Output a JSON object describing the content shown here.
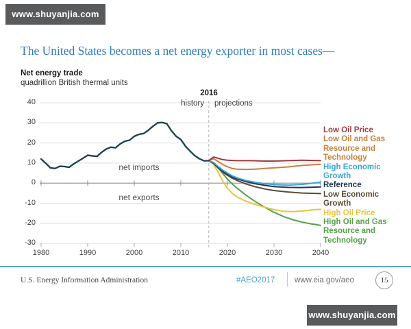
{
  "watermark": {
    "text": "www.shuyanjia.com"
  },
  "title": "The United States becomes a net energy exporter in most cases—",
  "chart": {
    "heading": "Net energy trade",
    "units": "quadrillion British thermal units",
    "divider_label": "2016",
    "history_label": "history",
    "projections_label": "projections",
    "net_imports_label": "net imports",
    "net_exports_label": "net exports"
  },
  "colors": {
    "title_blue": "#2e7bbd",
    "footer_rule_blue": "#57a7d3",
    "hashtag_blue": "#49a0d5",
    "banner_gray": "#595a5c"
  },
  "chart_data": {
    "type": "line",
    "title": "Net energy trade",
    "ylabel": "quadrillion British thermal units",
    "xlim": [
      1980,
      2040
    ],
    "ylim": [
      -30,
      40
    ],
    "x_ticks": [
      1980,
      1990,
      2000,
      2010,
      2020,
      2030,
      2040
    ],
    "y_ticks": [
      40,
      30,
      20,
      10,
      0,
      -10,
      -20,
      -30
    ],
    "divider_year": 2016,
    "grid": true,
    "legend_position": "right",
    "legend": [
      {
        "lines": [
          "Low Oil Price"
        ],
        "color": "#9e3b40"
      },
      {
        "lines": [
          "Low Oil and Gas",
          "Resource and",
          "Technology"
        ],
        "color": "#c5813f"
      },
      {
        "lines": [
          "High Economic",
          "Growth"
        ],
        "color": "#3aa4d9"
      },
      {
        "lines": [
          "Reference"
        ],
        "color": "#1f3550"
      },
      {
        "lines": [
          "Low Economic",
          "Growth"
        ],
        "color": "#5d4a33"
      },
      {
        "lines": [
          "High Oil Price"
        ],
        "color": "#e5c43d"
      },
      {
        "lines": [
          "High Oil and Gas",
          "Resource and",
          "Technology"
        ],
        "color": "#55a049"
      }
    ],
    "series": [
      {
        "name": "High Oil and Gas Resource and Technology",
        "color": "#55a049",
        "width": 2,
        "points": [
          [
            2016,
            11.2
          ],
          [
            2017,
            10.2
          ],
          [
            2018,
            7.8
          ],
          [
            2019,
            4.8
          ],
          [
            2020,
            2
          ],
          [
            2021,
            -0.3
          ],
          [
            2022,
            -2.4
          ],
          [
            2024,
            -6
          ],
          [
            2026,
            -9.2
          ],
          [
            2028,
            -12
          ],
          [
            2030,
            -14.5
          ],
          [
            2032,
            -16.6
          ],
          [
            2034,
            -18.2
          ],
          [
            2036,
            -19.4
          ],
          [
            2038,
            -20.3
          ],
          [
            2040,
            -21
          ]
        ]
      },
      {
        "name": "High Oil Price",
        "color": "#e5c43d",
        "width": 2,
        "points": [
          [
            2016,
            11.2
          ],
          [
            2017,
            9.4
          ],
          [
            2018,
            5.5
          ],
          [
            2019,
            1
          ],
          [
            2020,
            -2.5
          ],
          [
            2021,
            -5
          ],
          [
            2022,
            -6.8
          ],
          [
            2024,
            -9
          ],
          [
            2026,
            -10.6
          ],
          [
            2028,
            -12
          ],
          [
            2030,
            -13.2
          ],
          [
            2032,
            -14
          ],
          [
            2034,
            -14.2
          ],
          [
            2036,
            -13.9
          ],
          [
            2038,
            -13.4
          ],
          [
            2040,
            -13
          ]
        ]
      },
      {
        "name": "Low Economic Growth",
        "color": "#5d4a33",
        "width": 2,
        "points": [
          [
            2016,
            11.2
          ],
          [
            2017,
            9.9
          ],
          [
            2018,
            7.5
          ],
          [
            2019,
            5.5
          ],
          [
            2020,
            3.9
          ],
          [
            2021,
            2.5
          ],
          [
            2022,
            1.4
          ],
          [
            2024,
            -0.4
          ],
          [
            2026,
            -1.8
          ],
          [
            2028,
            -2.9
          ],
          [
            2030,
            -3.7
          ],
          [
            2033,
            -4.4
          ],
          [
            2036,
            -4.9
          ],
          [
            2040,
            -5.2
          ]
        ]
      },
      {
        "name": "Reference",
        "color": "#1f3550",
        "width": 2,
        "points": [
          [
            2016,
            11.2
          ],
          [
            2017,
            10.1
          ],
          [
            2018,
            7.9
          ],
          [
            2019,
            6
          ],
          [
            2020,
            4.5
          ],
          [
            2021,
            3.2
          ],
          [
            2022,
            2.2
          ],
          [
            2024,
            0.8
          ],
          [
            2026,
            -0.3
          ],
          [
            2028,
            -1.1
          ],
          [
            2030,
            -1.7
          ],
          [
            2033,
            -2.1
          ],
          [
            2036,
            -2.2
          ],
          [
            2040,
            -1.9
          ]
        ]
      },
      {
        "name": "High Economic Growth",
        "color": "#3aa4d9",
        "width": 2,
        "points": [
          [
            2016,
            11.2
          ],
          [
            2017,
            10.3
          ],
          [
            2018,
            8.3
          ],
          [
            2019,
            6.5
          ],
          [
            2020,
            5
          ],
          [
            2021,
            3.7
          ],
          [
            2022,
            2.7
          ],
          [
            2024,
            1.3
          ],
          [
            2026,
            0.4
          ],
          [
            2028,
            -0.3
          ],
          [
            2030,
            -0.7
          ],
          [
            2033,
            -1
          ],
          [
            2036,
            -0.6
          ],
          [
            2038,
            -0.1
          ],
          [
            2040,
            0.5
          ]
        ]
      },
      {
        "name": "Low Oil and Gas Resource and Technology",
        "color": "#c5813f",
        "width": 2,
        "points": [
          [
            2016,
            11.2
          ],
          [
            2017,
            12.2
          ],
          [
            2018,
            10.8
          ],
          [
            2019,
            9.3
          ],
          [
            2020,
            8.2
          ],
          [
            2021,
            7.3
          ],
          [
            2022,
            7
          ],
          [
            2024,
            6.8
          ],
          [
            2026,
            7
          ],
          [
            2028,
            7.3
          ],
          [
            2030,
            7.6
          ],
          [
            2033,
            8.1
          ],
          [
            2036,
            8.8
          ],
          [
            2040,
            9.4
          ]
        ]
      },
      {
        "name": "Low Oil Price",
        "color": "#9e3b40",
        "width": 2,
        "points": [
          [
            2016,
            11.2
          ],
          [
            2017,
            13
          ],
          [
            2018,
            12.4
          ],
          [
            2019,
            11.7
          ],
          [
            2020,
            11.4
          ],
          [
            2022,
            11.2
          ],
          [
            2025,
            11.2
          ],
          [
            2028,
            11
          ],
          [
            2030,
            11
          ],
          [
            2033,
            11.2
          ],
          [
            2036,
            11.4
          ],
          [
            2040,
            11.2
          ]
        ]
      },
      {
        "name": "History",
        "color": "#1d4356",
        "width": 2.4,
        "points": [
          [
            1980,
            12
          ],
          [
            1981,
            9.9
          ],
          [
            1982,
            7.6
          ],
          [
            1983,
            7.3
          ],
          [
            1984,
            8.4
          ],
          [
            1985,
            8.3
          ],
          [
            1986,
            7.9
          ],
          [
            1987,
            9.6
          ],
          [
            1988,
            11
          ],
          [
            1989,
            12.4
          ],
          [
            1990,
            13.9
          ],
          [
            1991,
            13.6
          ],
          [
            1992,
            13.3
          ],
          [
            1993,
            15.4
          ],
          [
            1994,
            17
          ],
          [
            1995,
            17.9
          ],
          [
            1996,
            17.6
          ],
          [
            1997,
            19.6
          ],
          [
            1998,
            20.9
          ],
          [
            1999,
            21.4
          ],
          [
            2000,
            23.3
          ],
          [
            2001,
            24.3
          ],
          [
            2002,
            24.7
          ],
          [
            2003,
            26.3
          ],
          [
            2004,
            28.3
          ],
          [
            2005,
            30
          ],
          [
            2006,
            30.2
          ],
          [
            2007,
            29.6
          ],
          [
            2008,
            26
          ],
          [
            2009,
            23.3
          ],
          [
            2010,
            21.7
          ],
          [
            2011,
            18.4
          ],
          [
            2012,
            15.9
          ],
          [
            2013,
            13.7
          ],
          [
            2014,
            12.1
          ],
          [
            2015,
            11.1
          ],
          [
            2016,
            11.2
          ]
        ]
      }
    ]
  },
  "footer": {
    "org": "U.S. Energy Information Administration",
    "hashtag": "#AEO2017",
    "url": "www.eia.gov/aeo",
    "page": "15"
  }
}
